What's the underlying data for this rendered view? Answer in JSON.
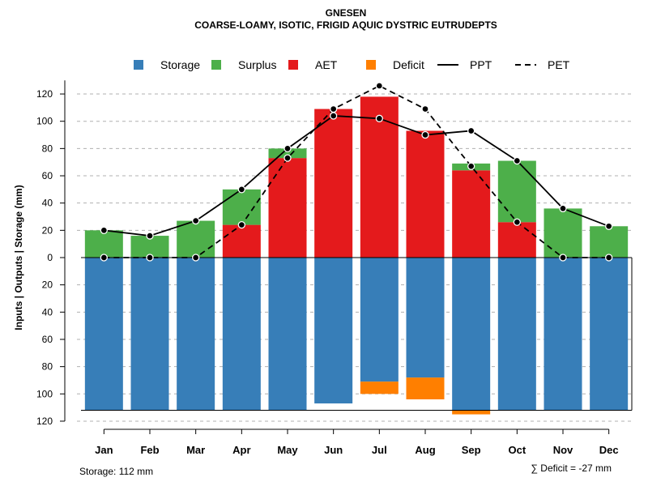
{
  "chart_data": {
    "type": "bar",
    "title": "GNESEN",
    "subtitle": "COARSE-LOAMY, ISOTIC, FRIGID AQUIC DYSTRIC EUTRUDEPTS",
    "ylabel": "Inputs | Outputs | Storage    (mm)",
    "ylim": [
      -120,
      130
    ],
    "yticks": [
      120,
      100,
      80,
      60,
      40,
      20,
      0,
      -20,
      -40,
      -60,
      -80,
      -100,
      -120
    ],
    "ytick_labels": [
      "120",
      "100",
      "80",
      "60",
      "40",
      "20",
      "0",
      "20",
      "40",
      "60",
      "80",
      "100",
      "120"
    ],
    "grid": true,
    "legend_position": "top",
    "categories": [
      "Jan",
      "Feb",
      "Mar",
      "Apr",
      "May",
      "Jun",
      "Jul",
      "Aug",
      "Sep",
      "Oct",
      "Nov",
      "Dec"
    ],
    "series": [
      {
        "name": "Storage",
        "color": "#377eb8",
        "values": [
          112,
          112,
          112,
          112,
          112,
          107,
          91,
          88,
          112,
          112,
          112,
          112
        ]
      },
      {
        "name": "Surplus",
        "color": "#4daf4a",
        "values": [
          20,
          16,
          27,
          26,
          7,
          0,
          0,
          0,
          5,
          45,
          36,
          23
        ]
      },
      {
        "name": "AET",
        "color": "#e41a1c",
        "values": [
          0,
          0,
          0,
          24,
          73,
          109,
          118,
          93,
          64,
          26,
          0,
          0
        ]
      },
      {
        "name": "Deficit",
        "color": "#ff7f00",
        "values": [
          0,
          0,
          0,
          0,
          0,
          0,
          9,
          16,
          3,
          0,
          0,
          0
        ]
      },
      {
        "name": "PPT",
        "color": "#000000",
        "line": "solid",
        "values": [
          20,
          16,
          27,
          50,
          80,
          104,
          102,
          90,
          93,
          71,
          36,
          23
        ]
      },
      {
        "name": "PET",
        "color": "#000000",
        "line": "dashed",
        "values": [
          0,
          0,
          0,
          24,
          73,
          109,
          126,
          109,
          67,
          26,
          0,
          0
        ]
      }
    ],
    "storage_capacity": 112,
    "storage_note": "Storage: 112 mm",
    "deficit_note": "∑ Deficit = -27 mm"
  }
}
